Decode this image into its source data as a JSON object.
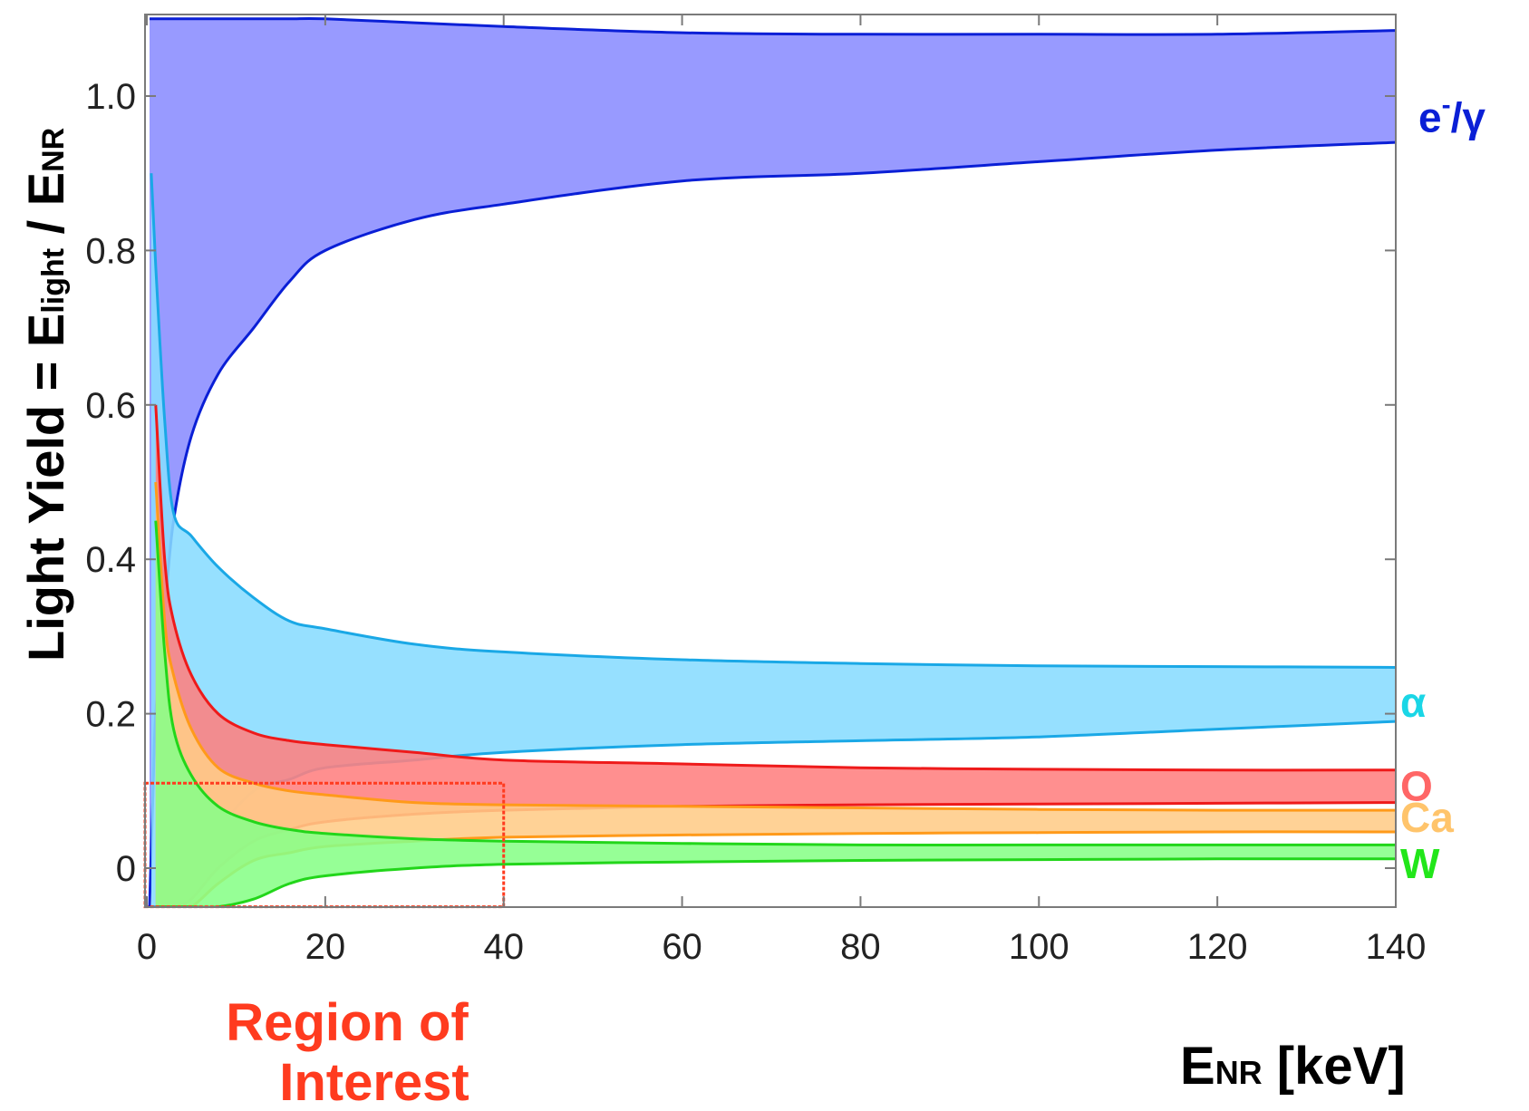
{
  "chart_data": {
    "type": "area",
    "xlabel": {
      "main": "E",
      "sub": "NR",
      "rest": " [keV]"
    },
    "ylabel": {
      "part1": "Light Yield = E",
      "sub1": "light",
      "part2": " / E",
      "sub2": "NR"
    },
    "xlim": [
      0,
      140
    ],
    "ylim": [
      -0.05,
      1.1
    ],
    "xticks": [
      0,
      20,
      40,
      60,
      80,
      100,
      120,
      140
    ],
    "yticks": [
      0,
      0.2,
      0.4,
      0.6,
      0.8,
      1.0
    ],
    "xtick_labels": [
      "0",
      "20",
      "40",
      "60",
      "80",
      "100",
      "120",
      "140"
    ],
    "ytick_labels": [
      "0",
      "0.2",
      "0.4",
      "0.6",
      "0.8",
      "1.0"
    ],
    "grid": false,
    "series": [
      {
        "name": "e-/γ",
        "label_main": "e",
        "label_sup": "-",
        "label_rest": "/γ",
        "color": "#0a1fd6",
        "fill": "#8a8cff",
        "x": [
          0.3,
          0.7,
          1,
          2,
          3,
          5,
          8,
          12,
          16,
          20,
          30,
          40,
          60,
          80,
          100,
          120,
          140
        ],
        "upper": [
          1.1,
          1.1,
          1.1,
          1.1,
          1.1,
          1.1,
          1.1,
          1.1,
          1.1,
          1.1,
          1.095,
          1.09,
          1.082,
          1.08,
          1.08,
          1.08,
          1.085
        ],
        "lower": [
          -0.05,
          0.1,
          0.2,
          0.33,
          0.45,
          0.56,
          0.64,
          0.7,
          0.76,
          0.8,
          0.84,
          0.86,
          0.89,
          0.9,
          0.915,
          0.93,
          0.94
        ]
      },
      {
        "name": "α",
        "label_main": "α",
        "color": "#1aa8e6",
        "fill": "#88dcff",
        "x": [
          0.5,
          1,
          2,
          3,
          5,
          8,
          12,
          16,
          20,
          30,
          40,
          60,
          80,
          100,
          120,
          140
        ],
        "upper": [
          0.9,
          0.78,
          0.58,
          0.46,
          0.43,
          0.39,
          0.35,
          0.32,
          0.31,
          0.29,
          0.28,
          0.27,
          0.265,
          0.262,
          0.261,
          0.26
        ],
        "lower": [
          -0.05,
          -0.05,
          -0.05,
          -0.05,
          0.0,
          0.05,
          0.1,
          0.115,
          0.13,
          0.14,
          0.15,
          0.16,
          0.165,
          0.17,
          0.18,
          0.19
        ]
      },
      {
        "name": "O",
        "label_main": "O",
        "color": "#ee1a1a",
        "fill": "#ff8080",
        "x": [
          1,
          2,
          3,
          5,
          8,
          12,
          16,
          20,
          30,
          40,
          60,
          80,
          100,
          120,
          140
        ],
        "upper": [
          0.6,
          0.4,
          0.32,
          0.25,
          0.2,
          0.175,
          0.165,
          0.16,
          0.15,
          0.14,
          0.135,
          0.13,
          0.128,
          0.127,
          0.127
        ],
        "lower": [
          -0.05,
          -0.05,
          -0.05,
          -0.04,
          0.0,
          0.035,
          0.05,
          0.06,
          0.07,
          0.075,
          0.08,
          0.082,
          0.083,
          0.084,
          0.085
        ]
      },
      {
        "name": "Ca",
        "label_main": "Ca",
        "color": "#ff9a1a",
        "fill": "#ffcc88",
        "x": [
          1,
          2,
          3,
          5,
          8,
          12,
          16,
          20,
          30,
          40,
          60,
          80,
          100,
          120,
          140
        ],
        "upper": [
          0.5,
          0.32,
          0.25,
          0.18,
          0.13,
          0.11,
          0.1,
          0.095,
          0.085,
          0.082,
          0.08,
          0.078,
          0.076,
          0.075,
          0.075
        ],
        "lower": [
          -0.05,
          -0.05,
          -0.05,
          -0.05,
          -0.02,
          0.01,
          0.02,
          0.028,
          0.035,
          0.04,
          0.043,
          0.045,
          0.046,
          0.047,
          0.047
        ]
      },
      {
        "name": "W",
        "label_main": "W",
        "color": "#22d61a",
        "fill": "#88ff88",
        "x": [
          1,
          2,
          3,
          5,
          8,
          12,
          16,
          20,
          30,
          40,
          60,
          80,
          100,
          120,
          140
        ],
        "upper": [
          0.45,
          0.28,
          0.18,
          0.12,
          0.08,
          0.06,
          0.05,
          0.045,
          0.038,
          0.035,
          0.032,
          0.03,
          0.03,
          0.03,
          0.03
        ],
        "lower": [
          -0.05,
          -0.05,
          -0.05,
          -0.05,
          -0.05,
          -0.04,
          -0.02,
          -0.01,
          0.0,
          0.005,
          0.008,
          0.01,
          0.011,
          0.012,
          0.012
        ]
      }
    ],
    "annotation": {
      "text_line1": "Region of",
      "text_line2": "Interest",
      "color": "#ff3b1f",
      "x_range": [
        0,
        40
      ],
      "y_range": [
        -0.05,
        0.11
      ]
    }
  }
}
